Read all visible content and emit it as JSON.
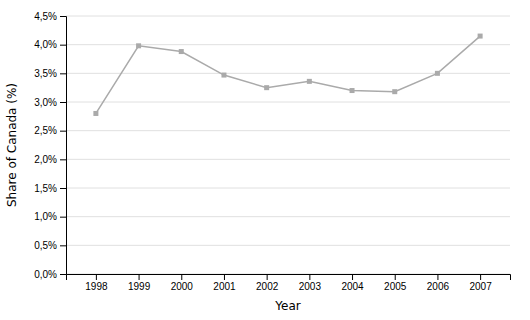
{
  "chart_data": {
    "type": "line",
    "x": [
      1998,
      1999,
      2000,
      2001,
      2002,
      2003,
      2004,
      2005,
      2006,
      2007
    ],
    "values": [
      0.028,
      0.0398,
      0.0388,
      0.0347,
      0.0325,
      0.0336,
      0.032,
      0.0318,
      0.035,
      0.0415
    ],
    "color": "#aaaaaa",
    "marker": "square",
    "xlabel": "Year",
    "ylabel": "Share of Canada (%)",
    "xlim": [
      1997.3,
      2007.7
    ],
    "xticks": [
      1998,
      1999,
      2000,
      2001,
      2002,
      2003,
      2004,
      2005,
      2006,
      2007
    ],
    "ylim": [
      0.0,
      0.045
    ],
    "yticks": [
      {
        "value": 0.0,
        "label": "0,0%"
      },
      {
        "value": 0.005,
        "label": "0,5%"
      },
      {
        "value": 0.01,
        "label": "1,0%"
      },
      {
        "value": 0.015,
        "label": "1,5%"
      },
      {
        "value": 0.02,
        "label": "2,0%"
      },
      {
        "value": 0.025,
        "label": "2,5%"
      },
      {
        "value": 0.03,
        "label": "3,0%"
      },
      {
        "value": 0.035,
        "label": "3,5%"
      },
      {
        "value": 0.04,
        "label": "4,0%"
      },
      {
        "value": 0.045,
        "label": "4,5%"
      }
    ],
    "grid": true
  }
}
